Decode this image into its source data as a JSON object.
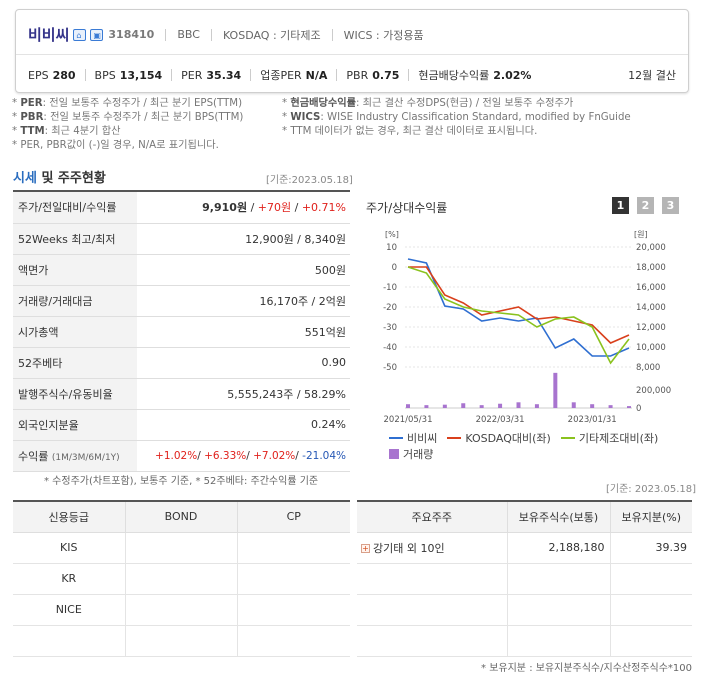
{
  "header": {
    "name": "비비씨",
    "code": "318410",
    "eng": "BBC",
    "market": "KOSDAQ : 기타제조",
    "wics": "WICS : 가정용품",
    "settlement": "12월 결산",
    "metrics": [
      {
        "label": "EPS",
        "value": "280"
      },
      {
        "label": "BPS",
        "value": "13,154"
      },
      {
        "label": "PER",
        "value": "35.34"
      },
      {
        "label": "업종PER",
        "value": "N/A"
      },
      {
        "label": "PBR",
        "value": "0.75"
      },
      {
        "label": "현금배당수익률",
        "value": "2.02%"
      }
    ]
  },
  "notes": {
    "left": [
      {
        "key": "PER",
        "text": ": 전일 보통주 수정주가 / 최근 분기 EPS(TTM)"
      },
      {
        "key": "PBR",
        "text": ": 전일 보통주 수정주가 / 최근 분기 BPS(TTM)"
      },
      {
        "key": "TTM",
        "text": ": 최근 4분기 합산"
      },
      {
        "key": "",
        "text": "PER, PBR값이 (-)일 경우, N/A로 표기됩니다."
      }
    ],
    "right": [
      {
        "key": "현금배당수익률",
        "text": ": 최근 결산 수정DPS(현금) / 전일 보통주 수정주가"
      },
      {
        "key": "WICS",
        "text": ": WISE Industry Classification Standard, modified by FnGuide"
      },
      {
        "key": "",
        "text": "TTM 데이터가 없는 경우, 최근 결산 데이터로 표시됩니다."
      }
    ]
  },
  "market": {
    "title_hl": "시세",
    "title_rest": " 및 주주현황",
    "base_date": "[기준:2023.05.18]",
    "rows": [
      {
        "label": "주가/전일대비/수익률",
        "price": "9,910원",
        "change": "+70원",
        "rate": "+0.71%"
      },
      {
        "label": "52Weeks 최고/최저",
        "value": "12,900원 / 8,340원"
      },
      {
        "label": "액면가",
        "value": "500원"
      },
      {
        "label": "거래량/거래대금",
        "value": "16,170주 / 2억원"
      },
      {
        "label": "시가총액",
        "value": "551억원"
      },
      {
        "label": "52주베타",
        "value": "0.90"
      },
      {
        "label": "발행주식수/유동비율",
        "value": "5,555,243주 / 58.29%"
      },
      {
        "label": "외국인지분율",
        "value": "0.24%"
      },
      {
        "label": "수익률",
        "sub": "(1M/3M/6M/1Y)",
        "r1": "+1.02%",
        "r2": "+6.33%",
        "r3": "+7.02%",
        "r4": "-21.04%"
      }
    ],
    "footnote": "* 수정주가(차트포함), 보통주 기준, * 52주베타: 주간수익률 기준"
  },
  "chart": {
    "title": "주가/상대수익률",
    "period_buttons": [
      "1",
      "2",
      "3"
    ],
    "left_unit": "[%]",
    "right_unit": "[원]",
    "legend": [
      "비비씨",
      "KOSDAQ대비(좌)",
      "기타제조대비(좌)",
      "거래량"
    ]
  },
  "chart_data": {
    "type": "line",
    "x": [
      "2021/05/31",
      "2021/07",
      "2021/09",
      "2021/11",
      "2022/01",
      "2022/03",
      "2022/05",
      "2022/07",
      "2022/09",
      "2022/11",
      "2023/01",
      "2023/03",
      "2023/05"
    ],
    "x_ticks": [
      "2021/05/31",
      "2022/03/31",
      "2023/01/31"
    ],
    "y_left_ticks": [
      10,
      0,
      -10,
      -20,
      -30,
      -40,
      -50
    ],
    "y_left_range": [
      -50,
      10
    ],
    "y_right_ticks": [
      20000,
      18000,
      16000,
      14000,
      12000,
      10000,
      8000
    ],
    "y_right_range": [
      8000,
      20000
    ],
    "volume_ticks": [
      200000,
      0
    ],
    "series": [
      {
        "name": "비비씨",
        "axis": "right",
        "color": "#2f6fd1",
        "values": [
          18800,
          18400,
          14100,
          13800,
          12600,
          12900,
          12600,
          12900,
          9900,
          10800,
          9100,
          9100,
          9900
        ]
      },
      {
        "name": "KOSDAQ대비(좌)",
        "axis": "left",
        "color": "#d9401c",
        "values": [
          0,
          0,
          -14,
          -18,
          -24,
          -22,
          -20,
          -26,
          -25,
          -27,
          -29,
          -38,
          -34
        ]
      },
      {
        "name": "기타제조대비(좌)",
        "axis": "left",
        "color": "#8ac21e",
        "values": [
          0,
          -3,
          -16,
          -20,
          -22,
          -23,
          -24,
          -30,
          -26,
          -25,
          -30,
          -48,
          -36
        ]
      },
      {
        "name": "거래량",
        "axis": "volume",
        "color": "#a874cf",
        "values": [
          40000,
          30000,
          35000,
          50000,
          30000,
          45000,
          60000,
          40000,
          370000,
          60000,
          40000,
          30000,
          20000
        ]
      }
    ]
  },
  "credit": {
    "base_date": "[기준: 2023.05.18]",
    "headers": [
      "신용등급",
      "BOND",
      "CP"
    ],
    "rows": [
      [
        "KIS",
        "",
        ""
      ],
      [
        "KR",
        "",
        ""
      ],
      [
        "NICE",
        "",
        ""
      ],
      [
        "",
        "",
        ""
      ]
    ]
  },
  "holders": {
    "headers": [
      "주요주주",
      "보유주식수(보통)",
      "보유지분(%)"
    ],
    "rows": [
      [
        "강기태 외 10인",
        "2,188,180",
        "39.39"
      ],
      [
        "",
        "",
        ""
      ],
      [
        "",
        "",
        ""
      ],
      [
        "",
        "",
        ""
      ]
    ],
    "footnote": "* 보유지분 : 보유지분주식수/지수산정주식수*100"
  },
  "colors": {
    "title_name": "#35348a",
    "up": "#e0211c",
    "down": "#2557b5"
  }
}
